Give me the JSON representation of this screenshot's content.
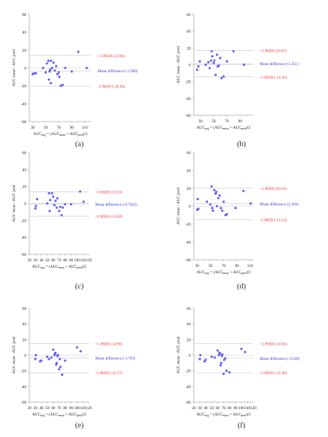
{
  "figure": {
    "colors": {
      "points": "#5b5bf0",
      "mean_label": "#3b3be0",
      "loa_label": "#e03030",
      "ref_line": "#c8c8c8",
      "axis": "#b0b0b0",
      "text": "#222222"
    }
  },
  "chart_data": [
    {
      "type": "scatter",
      "panel_label": "(a)",
      "xlabel_main": "AUC",
      "xlabel_sub": "avg",
      "xlabel_rest": " = (AUC",
      "xlabel_sub2": "meas",
      "xlabel_rest2": " + AUC",
      "xlabel_sub3": "pred",
      "xlabel_end": ")/2",
      "ylabel": "AUC meas - AUC pred",
      "xlim": [
        25,
        120
      ],
      "ylim": [
        -60,
        60
      ],
      "xticks": [
        30,
        50,
        70,
        90,
        110
      ],
      "xticks_minor": [
        40,
        60,
        80,
        100
      ],
      "yticks": [
        -60,
        -40,
        -20,
        0,
        20,
        40,
        60
      ],
      "upper_loa": 13.96,
      "mean": -3.3,
      "lower_loa": -20.56,
      "upper_label": "+1.96SD (13.96)",
      "mean_label": "Mean difference (-3.300)",
      "lower_label": "-1.96SD (-20.56)",
      "x": [
        30,
        32,
        35,
        46,
        50,
        52,
        54,
        55,
        56,
        57,
        58,
        58,
        60,
        62,
        64,
        66,
        68,
        70,
        71,
        73,
        76,
        80,
        90,
        100,
        113
      ],
      "y": [
        -7,
        -6,
        -6,
        0,
        -5,
        5,
        8,
        -13,
        -4,
        -2,
        8,
        -17,
        0,
        6,
        -3,
        2,
        -7,
        -5,
        -10,
        -20,
        -19,
        0,
        -4,
        18,
        0
      ]
    },
    {
      "type": "scatter",
      "panel_label": "(b)",
      "xlabel_main": "AUC",
      "xlabel_sub": "avg",
      "xlabel_rest": " = (AUC",
      "xlabel_sub2": "meas",
      "xlabel_rest2": " + AUC",
      "xlabel_sub3": "pred",
      "xlabel_end": ")/2",
      "ylabel": "AUC meas - AUC pred",
      "xlim": [
        20,
        110
      ],
      "ylim": [
        -60,
        60
      ],
      "xticks": [
        30,
        50,
        70,
        90
      ],
      "xticks_minor": [
        40,
        60,
        80,
        100
      ],
      "yticks": [
        -60,
        -40,
        -20,
        0,
        20,
        40,
        60
      ],
      "upper_loa": 16.87,
      "mean": 1.251,
      "lower_loa": -14.45,
      "upper_label": "+1.96SD (16.87)",
      "mean_label": "Mean difference (1.251)",
      "lower_label": "-1.96SD (-14.45)",
      "x": [
        25,
        27,
        29,
        38,
        42,
        44,
        46,
        47,
        48,
        50,
        51,
        53,
        55,
        56,
        58,
        60,
        62,
        65,
        70,
        80,
        96
      ],
      "y": [
        -6,
        -2,
        4,
        0,
        3,
        -4,
        5,
        16,
        10,
        2,
        5,
        -12,
        12,
        -2,
        -1,
        8,
        -16,
        -14,
        4,
        16,
        0
      ]
    },
    {
      "type": "scatter",
      "panel_label": "(c)",
      "xlabel_main": "AUC",
      "xlabel_sub": "avg",
      "xlabel_rest": " = (AUC",
      "xlabel_sub2": "meas",
      "xlabel_rest2": " + AUC",
      "xlabel_sub3": "pred",
      "xlabel_end": ")/2",
      "ylabel": "AUC meas - AUC pred",
      "xlim": [
        20,
        120
      ],
      "ylim": [
        -60,
        60
      ],
      "xticks": [
        20,
        30,
        40,
        50,
        60,
        70,
        80,
        90,
        100,
        110,
        120
      ],
      "xticks_minor": [],
      "yticks": [
        -60,
        -40,
        -20,
        0,
        20,
        40,
        60
      ],
      "upper_loa": 13.63,
      "mean": -0.7942,
      "lower_loa": -15.02,
      "upper_label": "+1.96SD (13.63)",
      "mean_label": "Mean difference (-0.7942)",
      "lower_label": "-1.96SD (-15.02)",
      "x": [
        30,
        31,
        33,
        50,
        53,
        54,
        55,
        58,
        60,
        62,
        64,
        66,
        67,
        70,
        72,
        74,
        76,
        80,
        90,
        105,
        111
      ],
      "y": [
        -6,
        -3,
        5,
        0,
        12,
        -9,
        4,
        12,
        8,
        -2,
        3,
        -5,
        6,
        -9,
        -4,
        -14,
        -5,
        -1,
        -1,
        14,
        2
      ]
    },
    {
      "type": "scatter",
      "panel_label": "(d)",
      "xlabel_main": "AUC",
      "xlabel_sub": "avg",
      "xlabel_rest": " = (AUC",
      "xlabel_sub2": "meas",
      "xlabel_rest2": " + AUC",
      "xlabel_sub3": "pred",
      "xlabel_end": ")/2",
      "ylabel": "AUC meas - AUC pred",
      "xlim": [
        25,
        115
      ],
      "ylim": [
        -60,
        60
      ],
      "xticks": [
        30,
        50,
        70,
        90,
        110
      ],
      "xticks_minor": [
        40,
        60,
        80,
        100
      ],
      "yticks": [
        -60,
        -40,
        -20,
        0,
        20,
        40,
        60
      ],
      "upper_loa": 20.03,
      "mean": 2.456,
      "lower_loa": -15.12,
      "upper_label": "+1.96SD (20.03)",
      "mean_label": "Mean difference (2.456)",
      "lower_label": "-1.96SD (-15.12)",
      "x": [
        30,
        31,
        32,
        45,
        50,
        52,
        53,
        54,
        56,
        58,
        59,
        60,
        62,
        64,
        66,
        68,
        70,
        73,
        75,
        88,
        100,
        111
      ],
      "y": [
        -4,
        8,
        -3,
        5,
        2,
        22,
        -2,
        -5,
        18,
        14,
        16,
        0,
        9,
        12,
        -2,
        -5,
        5,
        -10,
        -9,
        -2,
        17,
        3
      ]
    },
    {
      "type": "scatter",
      "panel_label": "(e)",
      "xlabel_main": "AUC",
      "xlabel_sub": "avg",
      "xlabel_rest": " = (AUC",
      "xlabel_sub2": "meas",
      "xlabel_rest2": " + AUC",
      "xlabel_sub3": "pred",
      "xlabel_end": ")/2",
      "ylabel": "AUC meas - AUC pred",
      "xlim": [
        20,
        120
      ],
      "ylim": [
        -60,
        60
      ],
      "xticks": [
        20,
        30,
        40,
        50,
        60,
        70,
        80,
        90,
        100,
        110,
        120
      ],
      "xticks_minor": [],
      "yticks": [
        -60,
        -40,
        -20,
        0,
        20,
        40,
        60
      ],
      "upper_loa": 14.96,
      "mean": -3.793,
      "lower_loa": -22.57,
      "upper_label": "+1.96SD (14.96)",
      "mean_label": "Mean difference (-3.793)",
      "lower_label": "-1.96SD (-22.57)",
      "x": [
        30,
        31,
        38,
        40,
        50,
        53,
        57,
        60,
        62,
        63,
        64,
        65,
        66,
        67,
        68,
        70,
        71,
        72,
        75,
        80,
        100,
        106
      ],
      "y": [
        -5,
        0,
        -8,
        -7,
        -2,
        -5,
        -3,
        7,
        0,
        2,
        3,
        -12,
        -10,
        -1,
        0,
        -18,
        -5,
        -15,
        -25,
        -7,
        10,
        5
      ]
    },
    {
      "type": "scatter",
      "panel_label": "(f)",
      "xlabel_main": "AUC",
      "xlabel_sub": "avg",
      "xlabel_rest": " = (AUC",
      "xlabel_sub2": "meas",
      "xlabel_rest2": " + AUC",
      "xlabel_sub3": "pred",
      "xlabel_end": ")/2",
      "ylabel": "AUC meas - AUC pred",
      "xlim": [
        20,
        120
      ],
      "ylim": [
        -60,
        60
      ],
      "xticks": [
        20,
        30,
        40,
        50,
        60,
        70,
        80,
        90,
        100,
        110,
        120
      ],
      "xticks_minor": [],
      "yticks": [
        -60,
        -40,
        -20,
        0,
        20,
        40,
        60
      ],
      "upper_loa": 14.63,
      "mean": -3.93,
      "lower_loa": -22.49,
      "upper_label": "+1.96SD (14.63)",
      "mean_label": "Mean difference (-3.930)",
      "lower_label": "-1.96SD (-22.49)",
      "x": [
        30,
        31,
        38,
        40,
        50,
        55,
        60,
        62,
        63,
        64,
        65,
        66,
        67,
        68,
        70,
        71,
        73,
        75,
        80,
        100,
        106
      ],
      "y": [
        -5,
        0,
        -8,
        -6,
        -2,
        -3,
        6,
        0,
        3,
        2,
        -13,
        -10,
        -1,
        1,
        -24,
        -6,
        -4,
        -20,
        -22,
        8,
        4
      ]
    }
  ]
}
